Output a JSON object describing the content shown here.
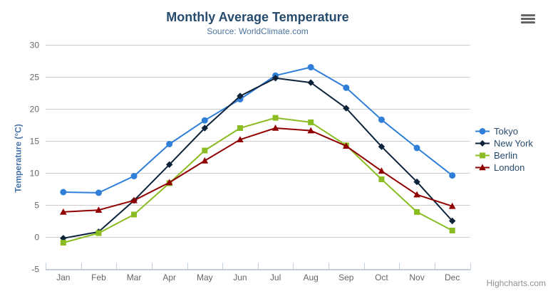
{
  "credits": {
    "label": "Highcharts.com"
  },
  "toolbar": {
    "context_menu_icon": "hamburger-icon"
  },
  "colors": {
    "title": "#274b6d",
    "subtitle": "#4d759e",
    "y_axis_title": "#4572a7",
    "axis_label": "#666666",
    "grid_line": "#cccccc",
    "axis_line": "#c0d0e0",
    "legend_text": "#274b6d",
    "credits_text": "#909090",
    "menu_icon": "#666666"
  },
  "chart_data": {
    "type": "line",
    "title": "Monthly Average Temperature",
    "subtitle": "Source: WorldClimate.com",
    "xlabel": "",
    "ylabel": "Temperature (°C)",
    "ylim": [
      -5,
      30
    ],
    "yticks": [
      -5,
      0,
      5,
      10,
      15,
      20,
      25,
      30
    ],
    "grid": "horizontal",
    "legend_position": "right",
    "categories": [
      "Jan",
      "Feb",
      "Mar",
      "Apr",
      "May",
      "Jun",
      "Jul",
      "Aug",
      "Sep",
      "Oct",
      "Nov",
      "Dec"
    ],
    "series": [
      {
        "name": "Tokyo",
        "color": "#2f7ed8",
        "marker": "circle",
        "values": [
          7.0,
          6.9,
          9.5,
          14.5,
          18.2,
          21.5,
          25.2,
          26.5,
          23.3,
          18.3,
          13.9,
          9.6
        ]
      },
      {
        "name": "New York",
        "color": "#0d233a",
        "marker": "diamond",
        "values": [
          -0.2,
          0.8,
          5.7,
          11.3,
          17.0,
          22.0,
          24.8,
          24.1,
          20.1,
          14.1,
          8.6,
          2.5
        ]
      },
      {
        "name": "Berlin",
        "color": "#8bbc21",
        "marker": "square",
        "values": [
          -0.9,
          0.6,
          3.5,
          8.4,
          13.5,
          17.0,
          18.6,
          17.9,
          14.3,
          9.0,
          3.9,
          1.0
        ]
      },
      {
        "name": "London",
        "color": "#910000",
        "marker": "triangle",
        "values": [
          3.9,
          4.2,
          5.7,
          8.5,
          11.9,
          15.2,
          17.0,
          16.6,
          14.2,
          10.3,
          6.6,
          4.8
        ]
      }
    ]
  }
}
